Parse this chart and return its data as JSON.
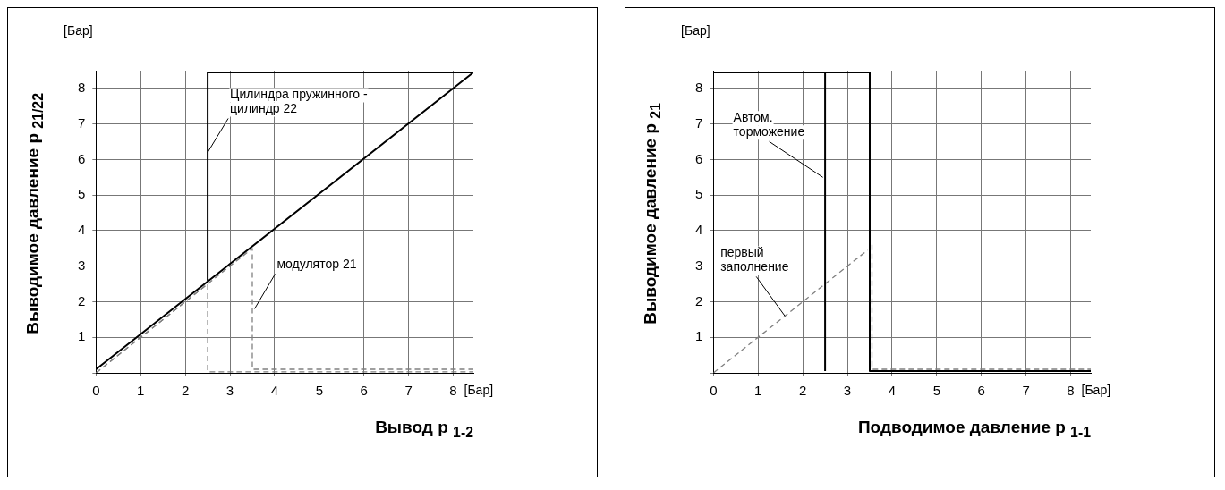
{
  "chart_data": [
    {
      "type": "line",
      "xlabel": "Вывод p $_{1-2}$",
      "ylabel": "Выводимое давление p $_{21/22}$",
      "xlim": [
        0,
        8.45
      ],
      "ylim": [
        0,
        8.5
      ],
      "xticks": [
        0,
        1,
        2,
        3,
        4,
        5,
        6,
        7,
        8
      ],
      "yticks": [
        {
          "value": 0,
          "label": null
        },
        1,
        2,
        3,
        4,
        5,
        6,
        7,
        8
      ],
      "grid": true,
      "legend": false,
      "marker": "none",
      "series": [
        {
          "color": "#000000",
          "line_style": "solid",
          "x": [
            0,
            8.45,
            2.5,
            2.5
          ],
          "values": [
            0.1,
            8.45,
            8.45,
            2.6
          ]
        },
        {
          "color": "#808080",
          "line_style": "dashed",
          "x": [
            0,
            3.5,
            3.5,
            8.45
          ],
          "values": [
            0,
            3.5,
            0.1,
            0.1
          ]
        },
        {
          "color": "#808080",
          "line_style": "dashed",
          "x": [
            0,
            2.5,
            2.5,
            8.45
          ],
          "values": [
            0,
            2.5,
            0.03,
            0.03
          ]
        }
      ],
      "annotations": [
        "[Бар]",
        "[Бар]",
        {
          "text": "Цилиндра пружинного -\nцилиндр 22",
          "x": 2.5,
          "y": 6.2
        },
        {
          "text": "модулятор 21",
          "x": 3.55,
          "y": 1.8
        }
      ]
    },
    {
      "type": "line",
      "xlabel": "Подводимое давление p $_{1-1}$",
      "ylabel": "Выводимое давление p $_{21}$",
      "xlim": [
        0,
        8.45
      ],
      "ylim": [
        0,
        8.5
      ],
      "xticks": [
        0,
        1,
        2,
        3,
        4,
        5,
        6,
        7,
        8
      ],
      "yticks": [
        {
          "value": 0,
          "label": null
        },
        1,
        2,
        3,
        4,
        5,
        6,
        7,
        8
      ],
      "grid": true,
      "legend": false,
      "marker": "none",
      "series": [
        {
          "color": "#000000",
          "line_style": "solid",
          "x": [
            0,
            3.5,
            3.5,
            8.45
          ],
          "values": [
            8.45,
            8.45,
            0.05,
            0.05
          ]
        },
        {
          "color": "#000000",
          "line_style": "solid",
          "x": [
            2.5,
            2.5
          ],
          "values": [
            0.05,
            8.45
          ]
        },
        {
          "color": "#808080",
          "line_style": "dashed",
          "x": [
            0,
            3.45
          ],
          "values": [
            0,
            3.45
          ]
        },
        {
          "color": "#808080",
          "line_style": "dashed",
          "x": [
            3.55,
            3.55,
            8.45
          ],
          "values": [
            3.6,
            0.1,
            0.1
          ]
        }
      ],
      "annotations": [
        "[Бар]",
        "[Бар]",
        {
          "text": "Автом.\nторможение",
          "x": 2.45,
          "y": 5.5
        },
        {
          "text": "первый\nзаполнение",
          "x": 1.6,
          "y": 1.6
        }
      ]
    }
  ]
}
